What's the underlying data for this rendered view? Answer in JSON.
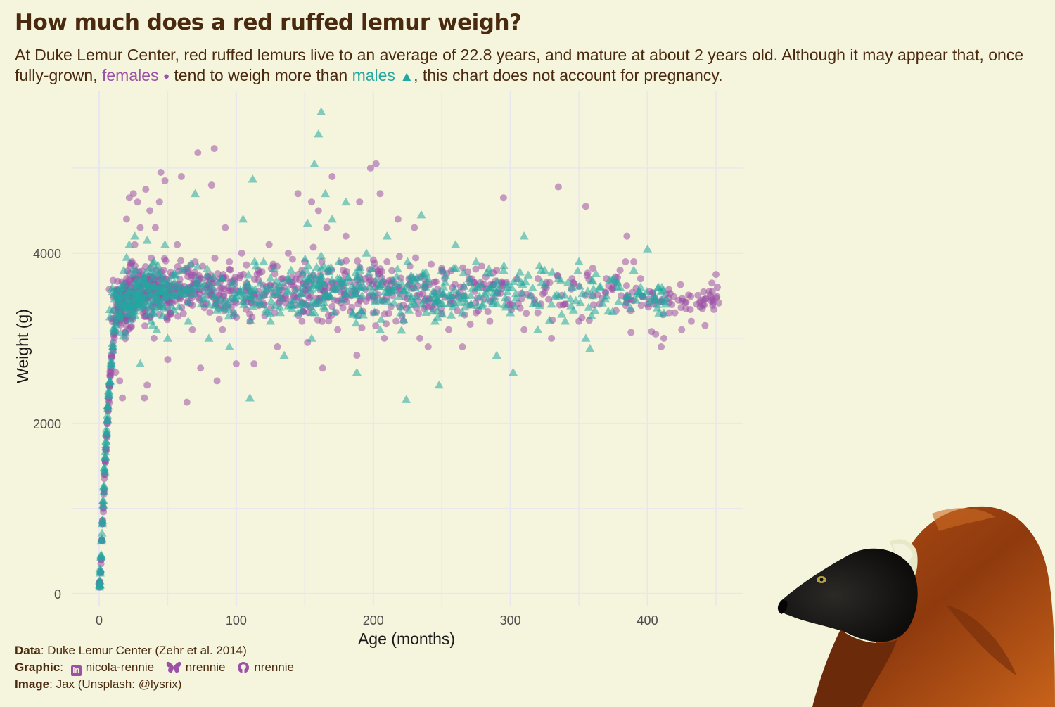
{
  "title": "How much does a red ruffed lemur weigh?",
  "subtitle": {
    "part1": "At Duke Lemur Center, red ruffed lemurs live to an average of 22.8 years, and mature at about 2 years old. Although it may appear that, once fully-grown,",
    "females_label": "females",
    "female_symbol": "●",
    "part2": "tend to weigh more than",
    "males_label": "males",
    "male_symbol": "▲",
    "part3": ", this chart does not account for pregnancy."
  },
  "caption": {
    "data_label": "Data",
    "data_text": ": Duke Lemur Center (Zehr et al. 2014)",
    "graphic_label": "Graphic",
    "linkedin_handle": "nicola-rennie",
    "bluesky_handle": "nrennie",
    "github_handle": "nrennie",
    "image_label": "Image",
    "image_text": ": Jax (Unsplash: @lysrix)"
  },
  "colors": {
    "background": "#f5f4dc",
    "text": "#4a2a0f",
    "female": "#9b51a6",
    "male": "#23a8a0",
    "grid": "#e8e6ee"
  },
  "chart_data": {
    "type": "scatter",
    "title": "How much does a red ruffed lemur weigh?",
    "xlabel": "Age (months)",
    "ylabel": "Weight (g)",
    "xlim": [
      -20,
      470
    ],
    "ylim": [
      -150,
      5900
    ],
    "xticks": [
      0,
      100,
      200,
      300,
      400
    ],
    "yticks": [
      0,
      2000,
      4000
    ],
    "grid": true,
    "series": [
      {
        "name": "females",
        "marker": "circle",
        "points": [
          [
            0.3,
            90
          ],
          [
            0.5,
            130
          ],
          [
            1,
            250
          ],
          [
            1.5,
            400
          ],
          [
            2,
            620
          ],
          [
            2.5,
            820
          ],
          [
            3,
            1000
          ],
          [
            3.5,
            1200
          ],
          [
            4,
            1400
          ],
          [
            4.5,
            1550
          ],
          [
            5,
            1700
          ],
          [
            5.5,
            1850
          ],
          [
            6,
            2000
          ],
          [
            6.5,
            2150
          ],
          [
            7,
            2300
          ],
          [
            7.5,
            2450
          ],
          [
            8,
            2550
          ],
          [
            8.5,
            2650
          ],
          [
            9,
            2800
          ],
          [
            10,
            2900
          ],
          [
            11,
            3050
          ],
          [
            12,
            2600
          ],
          [
            13,
            3200
          ],
          [
            14,
            3350
          ],
          [
            15,
            2500
          ],
          [
            16,
            3500
          ],
          [
            17,
            2300
          ],
          [
            18,
            3600
          ],
          [
            19,
            3300
          ],
          [
            20,
            3700
          ],
          [
            20,
            4400
          ],
          [
            22,
            4650
          ],
          [
            24,
            3900
          ],
          [
            25,
            4700
          ],
          [
            26,
            4100
          ],
          [
            28,
            4600
          ],
          [
            30,
            4300
          ],
          [
            32,
            3300
          ],
          [
            33,
            2300
          ],
          [
            34,
            4750
          ],
          [
            35,
            2450
          ],
          [
            37,
            4500
          ],
          [
            38,
            3600
          ],
          [
            40,
            3000
          ],
          [
            41,
            4300
          ],
          [
            44,
            4600
          ],
          [
            45,
            4950
          ],
          [
            47,
            3800
          ],
          [
            48,
            4850
          ],
          [
            50,
            2750
          ],
          [
            52,
            3300
          ],
          [
            55,
            3500
          ],
          [
            57,
            4100
          ],
          [
            60,
            4900
          ],
          [
            62,
            3800
          ],
          [
            64,
            2250
          ],
          [
            66,
            3600
          ],
          [
            68,
            3100
          ],
          [
            70,
            3900
          ],
          [
            72,
            5180
          ],
          [
            74,
            2650
          ],
          [
            76,
            3400
          ],
          [
            80,
            3500
          ],
          [
            82,
            4800
          ],
          [
            84,
            5230
          ],
          [
            86,
            2500
          ],
          [
            88,
            3700
          ],
          [
            90,
            3100
          ],
          [
            92,
            4300
          ],
          [
            95,
            3900
          ],
          [
            98,
            3300
          ],
          [
            100,
            2700
          ],
          [
            104,
            4000
          ],
          [
            108,
            3600
          ],
          [
            110,
            3200
          ],
          [
            113,
            2700
          ],
          [
            116,
            3800
          ],
          [
            120,
            3500
          ],
          [
            124,
            4100
          ],
          [
            128,
            3300
          ],
          [
            130,
            2900
          ],
          [
            134,
            3700
          ],
          [
            138,
            4000
          ],
          [
            142,
            3500
          ],
          [
            145,
            4700
          ],
          [
            148,
            3200
          ],
          [
            150,
            3900
          ],
          [
            152,
            2950
          ],
          [
            155,
            4600
          ],
          [
            158,
            3400
          ],
          [
            160,
            4500
          ],
          [
            163,
            2650
          ],
          [
            166,
            4300
          ],
          [
            168,
            3600
          ],
          [
            170,
            4900
          ],
          [
            174,
            3100
          ],
          [
            178,
            3800
          ],
          [
            180,
            4200
          ],
          [
            184,
            3500
          ],
          [
            188,
            2800
          ],
          [
            190,
            4600
          ],
          [
            194,
            3700
          ],
          [
            198,
            5000
          ],
          [
            200,
            3300
          ],
          [
            202,
            5050
          ],
          [
            205,
            4700
          ],
          [
            208,
            3000
          ],
          [
            210,
            3900
          ],
          [
            214,
            3500
          ],
          [
            218,
            4400
          ],
          [
            222,
            3200
          ],
          [
            226,
            3700
          ],
          [
            230,
            4300
          ],
          [
            234,
            3000
          ],
          [
            238,
            3600
          ],
          [
            240,
            2900
          ],
          [
            245,
            3400
          ],
          [
            250,
            3800
          ],
          [
            255,
            3100
          ],
          [
            260,
            3500
          ],
          [
            265,
            2900
          ],
          [
            270,
            3700
          ],
          [
            275,
            3300
          ],
          [
            280,
            3600
          ],
          [
            285,
            3200
          ],
          [
            290,
            3800
          ],
          [
            295,
            4650
          ],
          [
            300,
            3400
          ],
          [
            305,
            3700
          ],
          [
            310,
            3100
          ],
          [
            315,
            3500
          ],
          [
            320,
            3300
          ],
          [
            325,
            3600
          ],
          [
            330,
            3000
          ],
          [
            335,
            4780
          ],
          [
            340,
            3400
          ],
          [
            345,
            3700
          ],
          [
            350,
            3200
          ],
          [
            355,
            4550
          ],
          [
            360,
            3500
          ],
          [
            365,
            3400
          ],
          [
            370,
            3700
          ],
          [
            375,
            3600
          ],
          [
            380,
            3800
          ],
          [
            384,
            3900
          ],
          [
            385,
            4200
          ],
          [
            388,
            3070
          ],
          [
            390,
            3900
          ],
          [
            395,
            3700
          ],
          [
            400,
            3400
          ],
          [
            403,
            3080
          ],
          [
            406,
            3050
          ],
          [
            410,
            2900
          ],
          [
            412,
            3000
          ],
          [
            416,
            3300
          ],
          [
            420,
            3300
          ],
          [
            425,
            3100
          ],
          [
            428,
            3350
          ],
          [
            432,
            3200
          ],
          [
            436,
            3400
          ],
          [
            440,
            3350
          ],
          [
            442,
            3150
          ],
          [
            445,
            3550
          ],
          [
            447,
            3650
          ],
          [
            450,
            3750
          ],
          [
            451,
            3600
          ]
        ]
      },
      {
        "name": "males",
        "marker": "triangle",
        "points": [
          [
            0.3,
            100
          ],
          [
            0.6,
            150
          ],
          [
            1,
            280
          ],
          [
            1.5,
            450
          ],
          [
            2,
            650
          ],
          [
            2.5,
            860
          ],
          [
            3,
            1050
          ],
          [
            3.5,
            1250
          ],
          [
            4,
            1450
          ],
          [
            4.5,
            1600
          ],
          [
            5,
            1750
          ],
          [
            5.5,
            1900
          ],
          [
            6,
            2050
          ],
          [
            6.5,
            2200
          ],
          [
            7,
            2350
          ],
          [
            8,
            2500
          ],
          [
            9,
            2700
          ],
          [
            10,
            2900
          ],
          [
            11,
            3100
          ],
          [
            12,
            3200
          ],
          [
            14,
            3400
          ],
          [
            16,
            3600
          ],
          [
            18,
            3800
          ],
          [
            20,
            3950
          ],
          [
            22,
            4100
          ],
          [
            24,
            3300
          ],
          [
            26,
            4200
          ],
          [
            28,
            3700
          ],
          [
            30,
            2700
          ],
          [
            32,
            3500
          ],
          [
            35,
            4150
          ],
          [
            38,
            3200
          ],
          [
            40,
            3900
          ],
          [
            42,
            3100
          ],
          [
            45,
            3700
          ],
          [
            48,
            4100
          ],
          [
            50,
            3000
          ],
          [
            55,
            3500
          ],
          [
            60,
            3800
          ],
          [
            65,
            3200
          ],
          [
            70,
            4700
          ],
          [
            75,
            3600
          ],
          [
            80,
            3000
          ],
          [
            85,
            3400
          ],
          [
            90,
            3700
          ],
          [
            95,
            2900
          ],
          [
            100,
            3500
          ],
          [
            105,
            4400
          ],
          [
            110,
            2300
          ],
          [
            112,
            4870
          ],
          [
            115,
            3400
          ],
          [
            120,
            3900
          ],
          [
            125,
            3200
          ],
          [
            130,
            3600
          ],
          [
            135,
            2800
          ],
          [
            140,
            3800
          ],
          [
            145,
            3300
          ],
          [
            150,
            3700
          ],
          [
            152,
            4350
          ],
          [
            155,
            3000
          ],
          [
            157,
            5050
          ],
          [
            160,
            5400
          ],
          [
            162,
            5660
          ],
          [
            165,
            4700
          ],
          [
            168,
            3500
          ],
          [
            170,
            4400
          ],
          [
            175,
            3900
          ],
          [
            180,
            4600
          ],
          [
            185,
            3300
          ],
          [
            188,
            2600
          ],
          [
            190,
            3800
          ],
          [
            195,
            4000
          ],
          [
            200,
            3500
          ],
          [
            205,
            3100
          ],
          [
            210,
            4200
          ],
          [
            215,
            3600
          ],
          [
            220,
            3300
          ],
          [
            224,
            2280
          ],
          [
            225,
            3900
          ],
          [
            230,
            3400
          ],
          [
            235,
            4450
          ],
          [
            240,
            3700
          ],
          [
            245,
            3200
          ],
          [
            248,
            2450
          ],
          [
            250,
            3800
          ],
          [
            255,
            3500
          ],
          [
            260,
            4100
          ],
          [
            265,
            3300
          ],
          [
            270,
            3700
          ],
          [
            275,
            3900
          ],
          [
            280,
            3400
          ],
          [
            285,
            3600
          ],
          [
            290,
            2800
          ],
          [
            295,
            3800
          ],
          [
            300,
            3300
          ],
          [
            302,
            2600
          ],
          [
            305,
            3700
          ],
          [
            310,
            4200
          ],
          [
            315,
            3500
          ],
          [
            320,
            3100
          ],
          [
            325,
            3800
          ],
          [
            330,
            3400
          ],
          [
            335,
            3700
          ],
          [
            340,
            3200
          ],
          [
            345,
            3600
          ],
          [
            350,
            3900
          ],
          [
            355,
            3000
          ],
          [
            358,
            2880
          ],
          [
            360,
            3500
          ],
          [
            365,
            3600
          ],
          [
            370,
            3500
          ],
          [
            375,
            3700
          ],
          [
            380,
            3600
          ],
          [
            385,
            3500
          ],
          [
            390,
            3800
          ],
          [
            395,
            3600
          ],
          [
            400,
            4050
          ],
          [
            405,
            3500
          ],
          [
            408,
            3600
          ],
          [
            410,
            3550
          ],
          [
            412,
            3300
          ]
        ]
      }
    ]
  },
  "image_alt": "Red ruffed lemur"
}
